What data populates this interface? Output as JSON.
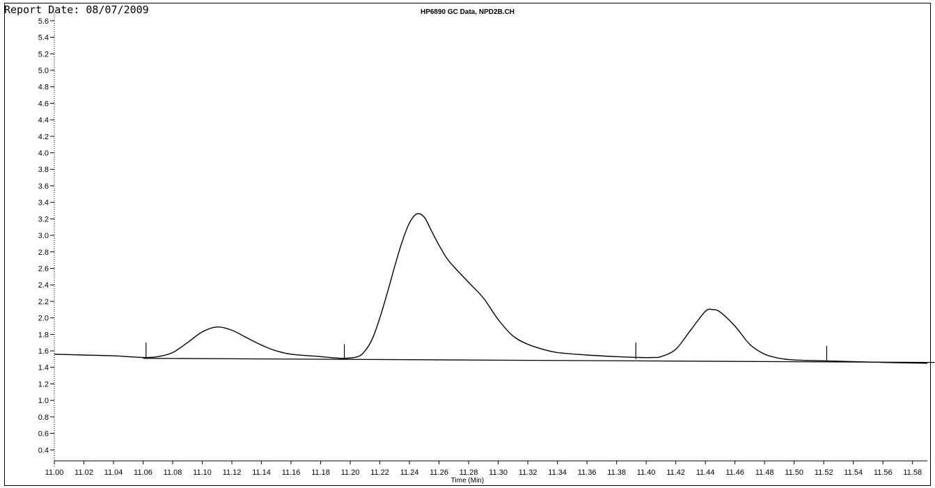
{
  "report_date": "Report Date: 08/07/2009",
  "chart_data": {
    "type": "line",
    "title": "HP6890 GC Data, NPD2B.CH",
    "xlabel": "Time (Min)",
    "ylabel": "",
    "xlim": [
      11.0,
      11.59
    ],
    "ylim": [
      0.2,
      5.7
    ],
    "x_ticks": [
      "11.00",
      "11.02",
      "11.04",
      "11.06",
      "11.08",
      "11.10",
      "11.12",
      "11.14",
      "11.16",
      "11.18",
      "11.20",
      "11.22",
      "11.24",
      "11.26",
      "11.28",
      "11.30",
      "11.32",
      "11.34",
      "11.36",
      "11.38",
      "11.40",
      "11.42",
      "11.44",
      "11.46",
      "11.48",
      "11.50",
      "11.52",
      "11.54",
      "11.56",
      "11.58"
    ],
    "y_ticks": [
      "5.6",
      "5.4",
      "5.2",
      "5.0",
      "4.8",
      "4.6",
      "4.4",
      "4.2",
      "4.0",
      "3.8",
      "3.6",
      "3.4",
      "3.2",
      "3.0",
      "2.8",
      "2.6",
      "2.4",
      "2.2",
      "2.0",
      "1.8",
      "1.6",
      "1.4",
      "1.2",
      "1.0",
      "0.8",
      "0.6",
      "0.4"
    ],
    "grid": false,
    "series": [
      {
        "x": [
          11.0,
          11.02,
          11.04,
          11.06,
          11.07,
          11.08,
          11.09,
          11.1,
          11.11,
          11.12,
          11.13,
          11.14,
          11.15,
          11.16,
          11.18,
          11.195,
          11.205,
          11.21,
          11.215,
          11.22,
          11.225,
          11.23,
          11.235,
          11.24,
          11.245,
          11.25,
          11.255,
          11.26,
          11.265,
          11.27,
          11.28,
          11.29,
          11.3,
          11.31,
          11.32,
          11.33,
          11.34,
          11.36,
          11.38,
          11.395,
          11.405,
          11.41,
          11.42,
          11.43,
          11.44,
          11.445,
          11.45,
          11.46,
          11.47,
          11.48,
          11.49,
          11.5,
          11.52,
          11.54,
          11.56,
          11.59
        ],
        "y": [
          1.56,
          1.55,
          1.54,
          1.52,
          1.53,
          1.58,
          1.7,
          1.83,
          1.89,
          1.85,
          1.76,
          1.67,
          1.6,
          1.56,
          1.53,
          1.51,
          1.53,
          1.6,
          1.75,
          2.0,
          2.3,
          2.62,
          2.92,
          3.15,
          3.26,
          3.22,
          3.05,
          2.88,
          2.73,
          2.62,
          2.43,
          2.24,
          1.98,
          1.78,
          1.68,
          1.62,
          1.58,
          1.55,
          1.53,
          1.52,
          1.52,
          1.53,
          1.62,
          1.85,
          2.08,
          2.1,
          2.07,
          1.9,
          1.68,
          1.56,
          1.51,
          1.49,
          1.48,
          1.47,
          1.46,
          1.45
        ]
      }
    ],
    "baselines": [
      {
        "x1": 11.06,
        "y1": 1.51,
        "x2": 11.595,
        "y2": 1.46
      }
    ],
    "peak_markers": [
      {
        "x": 11.062,
        "y_top": 1.7,
        "y_bottom": 1.51
      },
      {
        "x": 11.196,
        "y_top": 1.68,
        "y_bottom": 1.5
      },
      {
        "x": 11.393,
        "y_top": 1.7,
        "y_bottom": 1.5
      },
      {
        "x": 11.522,
        "y_top": 1.66,
        "y_bottom": 1.48
      }
    ]
  }
}
